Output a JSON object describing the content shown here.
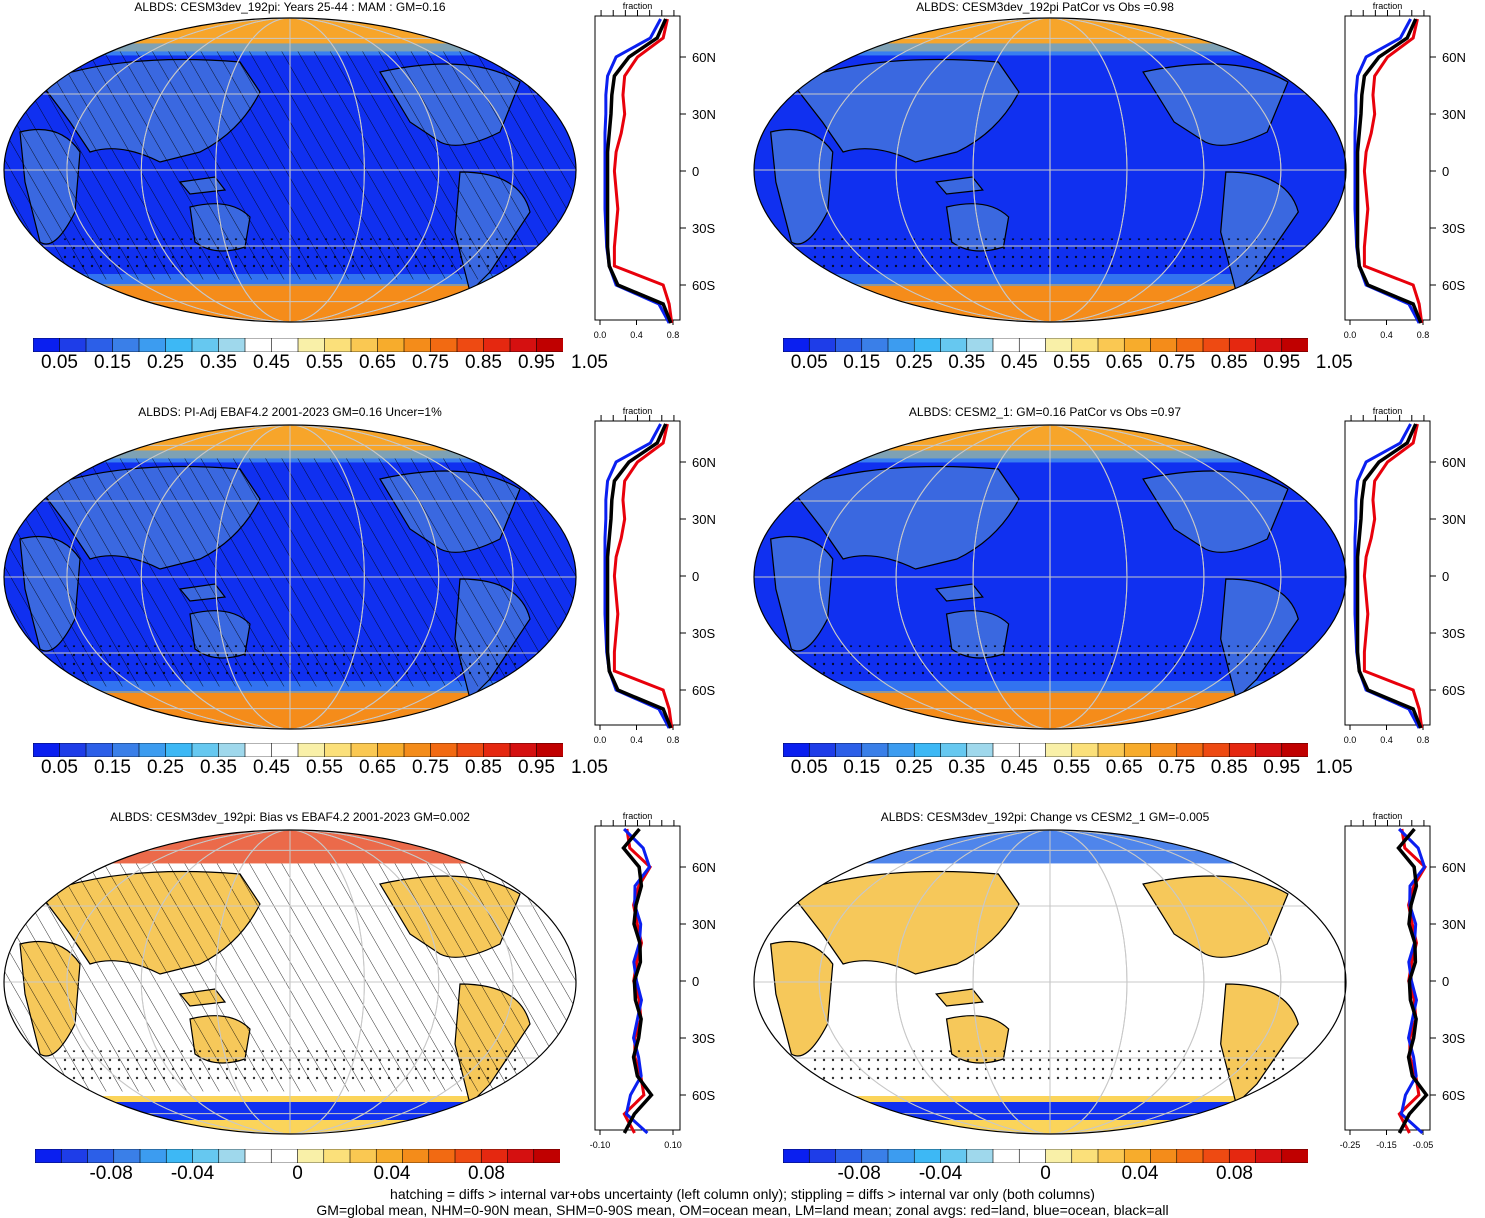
{
  "panels": [
    {
      "title": "ALBDS: CESM3dev_192pi: Years 25-44 : MAM : GM=0.16",
      "kind": "abs",
      "hatch": true
    },
    {
      "title": "ALBDS: CESM3dev_192pi PatCor vs Obs =0.98",
      "kind": "abs",
      "hatch": false
    },
    {
      "title": "ALBDS: PI-Adj EBAF4.2 2001-2023 GM=0.16 Uncer=1%",
      "kind": "abs",
      "hatch": true
    },
    {
      "title": "ALBDS: CESM2_1: GM=0.16 PatCor vs Obs =0.97",
      "kind": "abs",
      "hatch": false
    },
    {
      "title": "ALBDS: CESM3dev_192pi: Bias vs EBAF4.2 2001-2023 GM=0.002",
      "kind": "diff",
      "hatch": true
    },
    {
      "title": "ALBDS: CESM3dev_192pi: Change vs CESM2_1 GM=-0.005",
      "kind": "diff",
      "hatch": false
    }
  ],
  "colorbars": {
    "abs_labels": [
      "0.05",
      "0.15",
      "0.25",
      "0.35",
      "0.45",
      "0.55",
      "0.65",
      "0.75",
      "0.85",
      "0.95",
      "1.05"
    ],
    "diff_labels": [
      "-0.08",
      "-0.04",
      "0",
      "0.04",
      "0.08"
    ],
    "colors": [
      "#0a1ff0",
      "#1e3de8",
      "#2c5fe8",
      "#3a7fe8",
      "#3c9cf0",
      "#3db8f5",
      "#66c8f0",
      "#9fd8ec",
      "#ffffff",
      "#ffffff",
      "#f9f0a8",
      "#fbe07a",
      "#fac852",
      "#f7ac2c",
      "#f48c1a",
      "#f26a12",
      "#ee4a12",
      "#e52810",
      "#d51010",
      "#c00000"
    ]
  },
  "zonal": {
    "axis_title": "fraction",
    "lat_labels": [
      "60N",
      "30N",
      "0",
      "30S",
      "60S"
    ],
    "abs_xticks": [
      "0.0",
      "0.4",
      "0.8"
    ],
    "diff1_xticks": [
      "-0.10",
      "0.10"
    ],
    "diff2_xticks": [
      "-0.25",
      "-0.15",
      "-0.05"
    ],
    "colors": {
      "land": "#e8000b",
      "ocean": "#0a1ff0",
      "all": "#000000"
    }
  },
  "chart_data": {
    "type": "line",
    "variable": "ALBDS",
    "series_meaning": {
      "red": "land",
      "blue": "ocean",
      "black": "all"
    },
    "abs_zonal_profile": {
      "lat": [
        80,
        70,
        60,
        50,
        40,
        30,
        20,
        10,
        0,
        -10,
        -20,
        -30,
        -40,
        -50,
        -60,
        -70,
        -80
      ],
      "land": [
        0.8,
        0.75,
        0.45,
        0.3,
        0.28,
        0.3,
        0.26,
        0.2,
        0.18,
        0.2,
        0.22,
        0.2,
        0.18,
        0.18,
        0.75,
        0.82,
        0.85
      ],
      "ocean": [
        0.72,
        0.6,
        0.2,
        0.1,
        0.08,
        0.08,
        0.07,
        0.07,
        0.07,
        0.07,
        0.07,
        0.08,
        0.09,
        0.12,
        0.2,
        0.7,
        0.82
      ],
      "all": [
        0.78,
        0.68,
        0.35,
        0.18,
        0.15,
        0.14,
        0.12,
        0.1,
        0.1,
        0.1,
        0.1,
        0.1,
        0.1,
        0.12,
        0.22,
        0.75,
        0.84
      ]
    }
  },
  "footer": {
    "line1": "hatching = diffs > internal var+obs uncertainty (left column only); stippling = diffs > internal var only (both columns)",
    "line2": "GM=global mean, NHM=0-90N mean, SHM=0-90S mean, OM=ocean mean, LM=land mean; zonal avgs: red=land, blue=ocean, black=all"
  }
}
